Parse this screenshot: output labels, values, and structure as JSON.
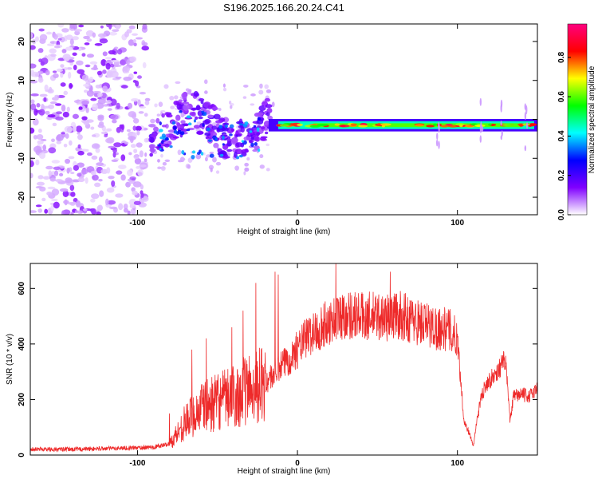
{
  "chart_data": [
    {
      "type": "heatmap",
      "title": "S196.2025.166.20.24.C41",
      "xlabel": "Height of straight line (km)",
      "ylabel": "Frequency (Hz)",
      "colorbar_label": "Normalized spectral amplitude",
      "xlim": [
        -167,
        150
      ],
      "ylim": [
        -24.5,
        24.5
      ],
      "x_ticks": [
        -100,
        0,
        100
      ],
      "x_tick_labels": [
        "-100",
        "0",
        "100"
      ],
      "y_ticks": [
        -20,
        -10,
        0,
        10,
        20
      ],
      "y_tick_labels": [
        "-20",
        "-10",
        "0",
        "10",
        "20"
      ],
      "colorbar_range": [
        0,
        0.97
      ],
      "colorbar_ticks": [
        0.0,
        0.2,
        0.4,
        0.6,
        0.8
      ],
      "colorbar_tick_labels": [
        "0.0",
        "0.2",
        "0.4",
        "0.6",
        "0.8"
      ],
      "colormap": [
        "#ffffff",
        "#8000ff",
        "#0000ff",
        "#00ffff",
        "#00ff00",
        "#ffff00",
        "#ff0000",
        "#ff0080"
      ],
      "features": [
        {
          "x_range": [
            -167,
            -95
          ],
          "freq_range": [
            -24.5,
            24.5
          ],
          "amplitude": 0.12
        },
        {
          "x_range": [
            -95,
            -20
          ],
          "freq_center": -3,
          "freq_spread": 6,
          "amplitude": 0.3
        },
        {
          "x_range": [
            -20,
            150
          ],
          "freq_center": -1.5,
          "freq_spread": 1.2,
          "amplitude": 0.8
        }
      ]
    },
    {
      "type": "line",
      "xlabel": "Height of straight line (km)",
      "ylabel": "SNR (10 * v/v)",
      "xlim": [
        -167,
        150
      ],
      "ylim": [
        0,
        690
      ],
      "x_ticks": [
        -100,
        0,
        100
      ],
      "x_tick_labels": [
        "-100",
        "0",
        "100"
      ],
      "y_ticks": [
        0,
        200,
        400,
        600
      ],
      "y_tick_labels": [
        "0",
        "200",
        "400",
        "600"
      ],
      "line_color": "#ee2a2a",
      "series": [
        {
          "x": [
            -167,
            -150,
            -130,
            -110,
            -90,
            -80,
            -75,
            -70,
            -60,
            -50,
            -40,
            -30,
            -20,
            -15,
            -10,
            -5,
            0,
            5,
            10,
            15,
            20,
            25,
            30,
            35,
            40,
            45,
            50,
            55,
            60,
            65,
            70,
            75,
            80,
            85,
            90,
            95,
            98,
            100,
            104,
            105,
            108,
            110,
            112,
            115,
            118,
            120,
            122,
            125,
            128,
            130,
            133,
            135,
            140,
            145,
            148,
            150
          ],
          "y": [
            22,
            20,
            22,
            25,
            28,
            40,
            80,
            120,
            170,
            190,
            210,
            240,
            260,
            290,
            320,
            350,
            380,
            420,
            440,
            460,
            480,
            495,
            505,
            505,
            500,
            500,
            500,
            495,
            505,
            500,
            490,
            480,
            470,
            460,
            455,
            450,
            430,
            420,
            130,
            110,
            70,
            30,
            120,
            210,
            260,
            270,
            280,
            300,
            330,
            340,
            120,
            210,
            220,
            210,
            230,
            240
          ]
        }
      ],
      "spikes": [
        {
          "x": -80,
          "y": 150
        },
        {
          "x": -66,
          "y": 380
        },
        {
          "x": -57,
          "y": 420
        },
        {
          "x": -41,
          "y": 460
        },
        {
          "x": -34,
          "y": 520
        },
        {
          "x": -26,
          "y": 620
        },
        {
          "x": -14,
          "y": 660
        },
        {
          "x": -12,
          "y": 650
        },
        {
          "x": 24,
          "y": 690
        },
        {
          "x": 58,
          "y": 660
        }
      ]
    }
  ]
}
